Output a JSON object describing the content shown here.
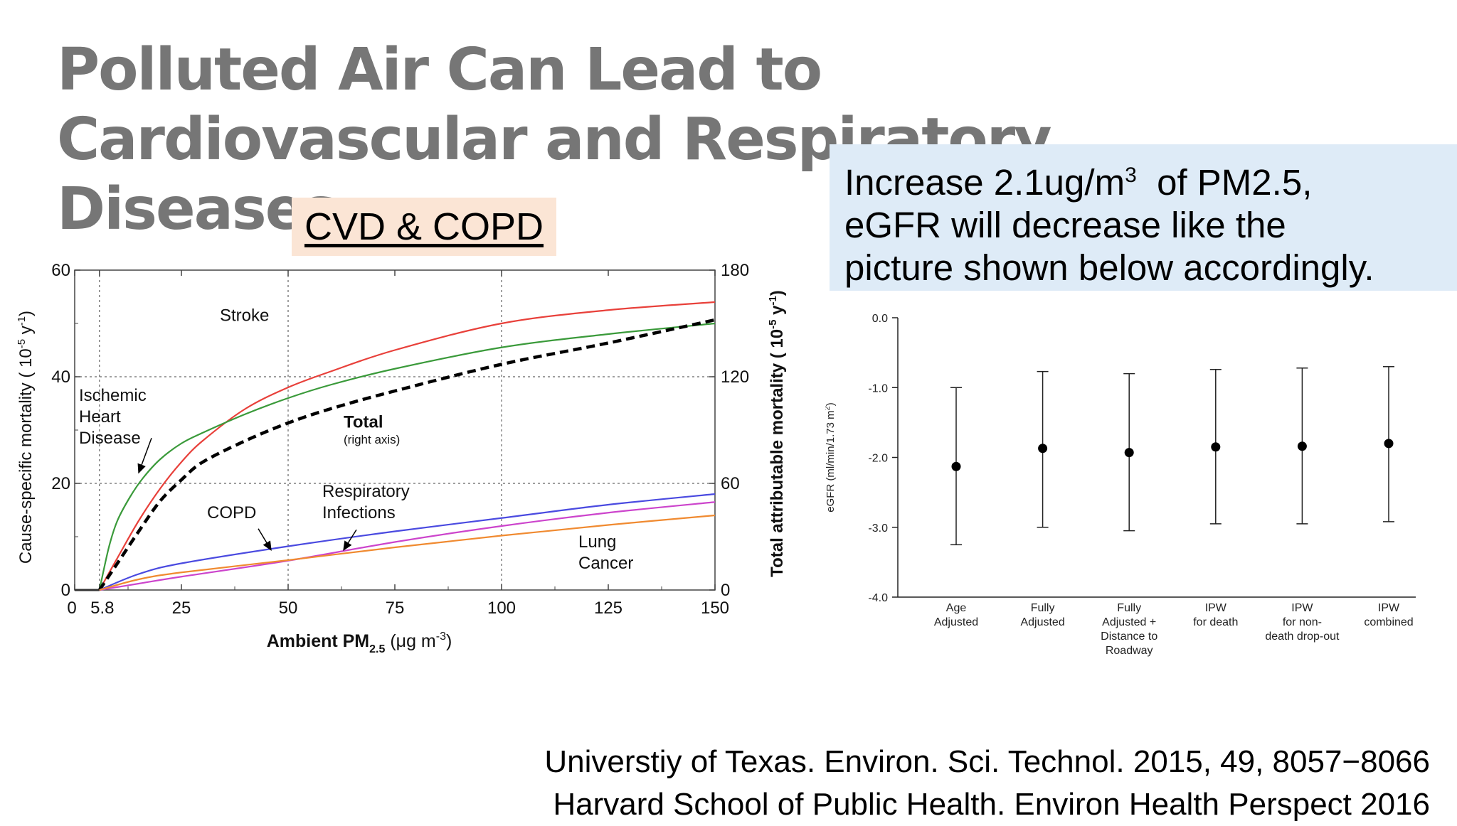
{
  "slide": {
    "title": "Polluted Air Can Lead to Cardiovascular and Respiratory Diseases",
    "subtitle_box": "CVD & COPD",
    "note": {
      "line1_prefix": "Increase 2.1ug/m",
      "line1_sup": "3",
      "line1_suffix": "  of PM2.5,",
      "line2": "eGFR will decrease like the",
      "line3": "picture shown below accordingly."
    },
    "references": [
      "Universtiy of Texas. Environ. Sci. Technol. 2015, 49, 8057−8066",
      "Harvard School of Public Health. Environ Health Perspect 2016"
    ],
    "colors": {
      "title": "#767676",
      "cvd_box": "#fbe5d5",
      "note_box": "#deebf7"
    }
  },
  "chart_data": [
    {
      "type": "line",
      "xlabel_main": "Ambient PM",
      "xlabel_sub": "2.5",
      "xlabel_unit_prefix": " (μg m",
      "xlabel_unit_sup": "-3",
      "xlabel_unit_suffix": ")",
      "ylabel_left_main": "Cause-specific mortality ( 10",
      "ylabel_left_sup": "-5",
      "ylabel_left_mid": " y",
      "ylabel_left_sup2": "-1",
      "ylabel_left_suffix": ")",
      "ylabel_right_main": "Total attributable mortality ( 10",
      "ylabel_right_sup": "-5",
      "ylabel_right_mid": " y",
      "ylabel_right_sup2": "-1",
      "ylabel_right_suffix": ")",
      "xlim": [
        0,
        150
      ],
      "ylim_left": [
        0,
        60
      ],
      "ylim_right": [
        0,
        180
      ],
      "x_ticks": [
        "0",
        "5.8",
        "25",
        "50",
        "75",
        "100",
        "125",
        "150"
      ],
      "x_tick_values": [
        0,
        5.8,
        25,
        50,
        75,
        100,
        125,
        150
      ],
      "y_left_ticks": [
        "0",
        "20",
        "40",
        "60"
      ],
      "y_left_tick_values": [
        0,
        20,
        40,
        60
      ],
      "y_right_ticks": [
        "0",
        "60",
        "120",
        "180"
      ],
      "y_right_tick_values": [
        0,
        60,
        120,
        180
      ],
      "grid_x": [
        5.8,
        50,
        100
      ],
      "grid_y": [
        20,
        40
      ],
      "series": [
        {
          "name": "Stroke",
          "color": "#e8403a",
          "axis": "left",
          "dashed": false,
          "x": [
            5.8,
            10,
            15,
            20,
            25,
            30,
            40,
            50,
            60,
            75,
            100,
            125,
            150
          ],
          "y": [
            0,
            6,
            13,
            19,
            24,
            28,
            34,
            38,
            41,
            45,
            50,
            52.5,
            54
          ]
        },
        {
          "name": "Ischemic Heart Disease",
          "color": "#3a9a3a",
          "axis": "left",
          "dashed": false,
          "x": [
            5.8,
            8,
            10,
            13,
            16,
            20,
            25,
            30,
            40,
            50,
            60,
            75,
            100,
            125,
            150
          ],
          "y": [
            0,
            8,
            13,
            17.5,
            21,
            24.5,
            27.5,
            29.5,
            33,
            36,
            38.5,
            41.5,
            45.5,
            48,
            50
          ]
        },
        {
          "name": "Total",
          "color": "#000000",
          "axis": "right",
          "dashed": true,
          "x": [
            5.8,
            10,
            15,
            20,
            25,
            30,
            40,
            50,
            60,
            75,
            100,
            125,
            150
          ],
          "y": [
            0,
            15,
            33,
            50,
            62,
            72,
            84,
            94,
            102,
            112,
            127,
            139,
            152
          ]
        },
        {
          "name": "COPD",
          "color": "#4a4ae0",
          "axis": "left",
          "dashed": false,
          "x": [
            5.8,
            15,
            25,
            50,
            75,
            100,
            125,
            150
          ],
          "y": [
            0,
            3,
            5,
            8.2,
            11,
            13.5,
            16,
            18
          ]
        },
        {
          "name": "Respiratory Infections",
          "color": "#cc44cc",
          "axis": "left",
          "dashed": false,
          "x": [
            5.8,
            15,
            25,
            50,
            75,
            100,
            125,
            150
          ],
          "y": [
            0,
            1.2,
            2.5,
            5.5,
            9,
            12,
            14.5,
            16.5
          ]
        },
        {
          "name": "Lung Cancer",
          "color": "#f08a30",
          "axis": "left",
          "dashed": false,
          "x": [
            5.8,
            15,
            25,
            50,
            75,
            100,
            125,
            150
          ],
          "y": [
            0,
            2,
            3.3,
            5.6,
            8,
            10.2,
            12.2,
            14
          ]
        }
      ],
      "flat_segment": {
        "color": "#333333",
        "x": [
          0,
          5.8
        ],
        "y": [
          0,
          0
        ]
      },
      "annotations": [
        {
          "lines": [
            "Stroke"
          ],
          "x": 34,
          "y": 50.5,
          "bold": false,
          "size": 24
        },
        {
          "lines": [
            "Ischemic",
            "Heart",
            "Disease"
          ],
          "x": 1,
          "y": 35.5,
          "bold": false,
          "size": 24,
          "line_step": 4,
          "arrow_from": [
            18,
            28.5
          ],
          "arrow_to": [
            15,
            22
          ]
        },
        {
          "lines": [
            "Total"
          ],
          "x": 63,
          "y": 30.5,
          "bold": true,
          "size": 24
        },
        {
          "lines": [
            "(right axis)"
          ],
          "x": 63,
          "y": 27.5,
          "bold": false,
          "size": 17
        },
        {
          "lines": [
            "COPD"
          ],
          "x": 31,
          "y": 13.5,
          "bold": false,
          "size": 24,
          "arrow_from": [
            43,
            11.5
          ],
          "arrow_to": [
            46,
            7.5
          ]
        },
        {
          "lines": [
            "Respiratory",
            "Infections"
          ],
          "x": 58,
          "y": 17.5,
          "bold": false,
          "size": 24,
          "line_step": 4,
          "arrow_from": [
            66,
            11.3
          ],
          "arrow_to": [
            63,
            7.5
          ]
        },
        {
          "lines": [
            "Lung",
            "Cancer"
          ],
          "x": 118,
          "y": 8,
          "bold": false,
          "size": 24,
          "line_step": 4
        }
      ]
    },
    {
      "type": "errorbar",
      "ylabel": "eGFR (ml/min/1.73 m",
      "ylabel_sup": "2",
      "ylabel_suffix": ")",
      "ylim": [
        -4.0,
        0.0
      ],
      "y_ticks": [
        "0.0",
        "-1.0",
        "-2.0",
        "-3.0",
        "-4.0"
      ],
      "y_tick_values": [
        0,
        -1,
        -2,
        -3,
        -4
      ],
      "categories": [
        [
          "Age",
          "Adjusted"
        ],
        [
          "Fully",
          "Adjusted"
        ],
        [
          "Fully",
          "Adjusted +",
          "Distance to",
          "Roadway"
        ],
        [
          "IPW",
          "for death"
        ],
        [
          "IPW",
          "for non-",
          "death drop-out"
        ],
        [
          "IPW",
          "combined"
        ]
      ],
      "estimates": [
        -2.13,
        -1.87,
        -1.93,
        -1.85,
        -1.84,
        -1.8
      ],
      "lower": [
        -3.25,
        -3.0,
        -3.05,
        -2.95,
        -2.95,
        -2.92
      ],
      "upper": [
        -1.0,
        -0.77,
        -0.8,
        -0.74,
        -0.72,
        -0.7
      ]
    }
  ]
}
